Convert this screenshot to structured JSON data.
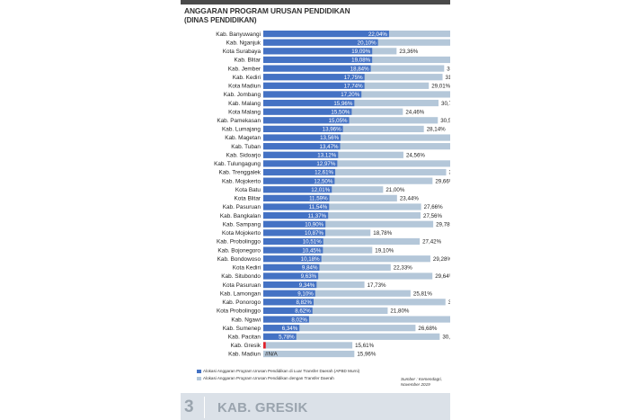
{
  "header": {
    "title_line1": "ANGGARAN PROGRAM URUSAN PENDIDIKAN",
    "title_line2": "(DINAS PENDIDIKAN)"
  },
  "chart_data": {
    "type": "bar",
    "orientation": "horizontal",
    "categories": [
      "Kab. Banyuwangi",
      "Kab. Nganjuk",
      "Kota Surabaya",
      "Kab. Blitar",
      "Kab. Jember",
      "Kab. Kediri",
      "Kota Madiun",
      "Kab. Jombang",
      "Kab. Malang",
      "Kota Malang",
      "Kab. Pamekasan",
      "Kab. Lumajang",
      "Kab. Magetan",
      "Kab. Tuban",
      "Kab. Sidoarjo",
      "Kab. Tulungagung",
      "Kab. Trenggalek",
      "Kab. Mojokerto",
      "Kota Batu",
      "Kota Blitar",
      "Kab. Pasuruan",
      "Kab. Bangkalan",
      "Kab. Sampang",
      "Kota Mojokerto",
      "Kab. Probolinggo",
      "Kab. Bojonegoro",
      "Kab. Bondowoso",
      "Kota Kediri",
      "Kab. Situbondo",
      "Kota Pasuruan",
      "Kab. Lamongan",
      "Kab. Ponorogo",
      "Kota Probolinggo",
      "Kab. Ngawi",
      "Kab. Sumenep",
      "Kab. Pacitan",
      "Kab. Gresik",
      "Kab. Madiun"
    ],
    "series": [
      {
        "name": "Alokasi Anggaran Program Urusan Pendidikan di Luar Transfer Daerah (APBD Murni)",
        "values": [
          22.04,
          20.1,
          19.09,
          19.08,
          18.84,
          17.75,
          17.74,
          17.2,
          15.96,
          15.5,
          15.05,
          13.96,
          13.56,
          13.47,
          13.12,
          12.97,
          12.61,
          12.5,
          12.01,
          11.59,
          11.54,
          11.37,
          10.9,
          10.87,
          10.51,
          10.45,
          10.18,
          9.84,
          9.63,
          9.34,
          9.1,
          8.82,
          8.62,
          8.02,
          6.34,
          5.78,
          0.43,
          null
        ],
        "labels": [
          "22,04%",
          "20,10%",
          "19,09%",
          "19,08%",
          "18,84%",
          "17,75%",
          "17,74%",
          "17,20%",
          "15,96%",
          "15,50%",
          "15,05%",
          "13,96%",
          "13,56%",
          "13,47%",
          "13,12%",
          "12,97%",
          "12,61%",
          "12,50%",
          "12,01%",
          "11,59%",
          "11,54%",
          "11,37%",
          "10,90%",
          "10,87%",
          "10,51%",
          "10,45%",
          "10,18%",
          "9,84%",
          "9,63%",
          "9,34%",
          "9,10%",
          "8,82%",
          "8,62%",
          "8,02%",
          "6,34%",
          "5,78%",
          "",
          "#N/A"
        ]
      },
      {
        "name": "Alokasi Anggaran Program Urusan Pendidikan dengan Transfer Daerah",
        "values": [
          34.73,
          35.31,
          23.36,
          35.21,
          31.7,
          31.42,
          29.01,
          33.69,
          30.71,
          24.46,
          30.59,
          28.14,
          33.94,
          32.94,
          24.56,
          36.04,
          32.05,
          29.66,
          21.0,
          23.44,
          27.66,
          27.56,
          29.78,
          18.78,
          27.42,
          19.1,
          29.28,
          22.33,
          29.64,
          17.73,
          25.81,
          31.93,
          21.8,
          33.86,
          26.68,
          30.92,
          15.61,
          15.96
        ],
        "labels": [
          "34,73%",
          "35,31%",
          "23,36%",
          "35,21%",
          "31,70%",
          "31,42%",
          "29,01%",
          "33,69%",
          "30,71%",
          "24,46%",
          "30,59%",
          "28,14%",
          "33,94%",
          "32,94%",
          "24,56%",
          "36,04%",
          "32,05%",
          "29,66%",
          "21,00%",
          "23,44%",
          "27,66%",
          "27,56%",
          "29,78%",
          "18,78%",
          "27,42%",
          "19,10%",
          "29,28%",
          "22,33%",
          "29,64%",
          "17,73%",
          "25,81%",
          "31,93%",
          "21,80%",
          "33,86%",
          "26,68%",
          "30,92%",
          "15,61%",
          "15,96%"
        ]
      }
    ],
    "highlight_category": "Kab. Gresik",
    "xlim": [
      0,
      40
    ],
    "grid": false,
    "legend_position": "bottom-left",
    "colors": {
      "series1": "#4472c4",
      "series2": "#b4c7d9",
      "highlight_bar": "#e0202a",
      "highlight_text": "#e0202a"
    }
  },
  "source": {
    "line1": "Sumber : Kemendagri,",
    "line2": "November 2019"
  },
  "footer": {
    "number": "3",
    "text": "KAB. GRESIK"
  }
}
